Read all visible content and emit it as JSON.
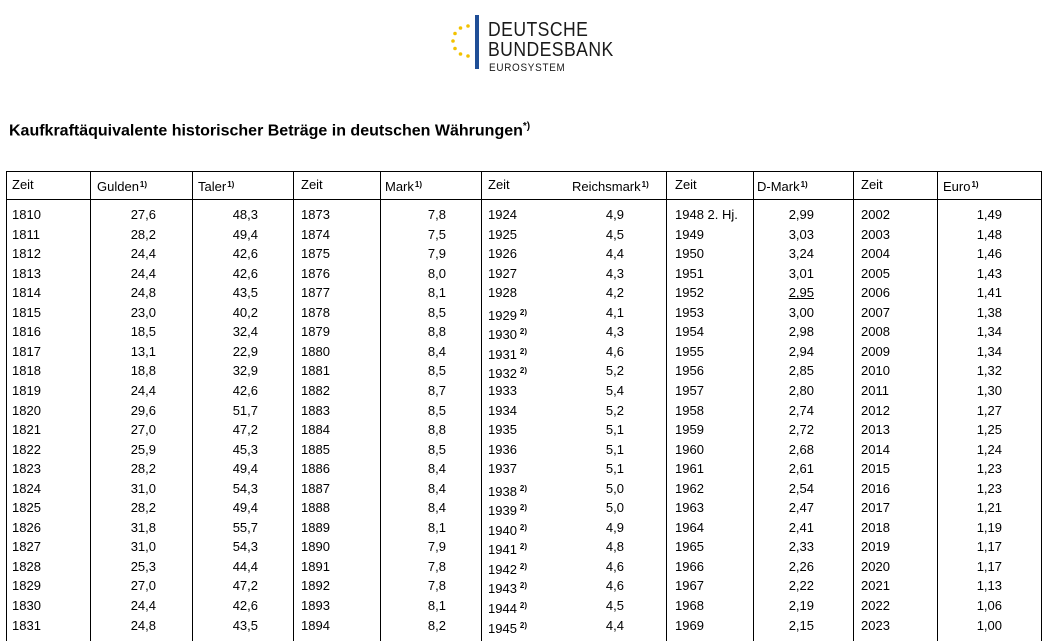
{
  "logo": {
    "line1": "DEUTSCHE",
    "line2": "BUNDESBANK",
    "line3": "EUROSYSTEM",
    "colors": {
      "bar": "#1f4e96",
      "stars": "#f2c200"
    }
  },
  "title": {
    "text": "Kaufkraftäquivalente historischer Beträge in deutschen Währungen",
    "marker": "*)"
  },
  "headers": [
    {
      "label": "Zeit",
      "note": ""
    },
    {
      "label": "Gulden",
      "note": "1)"
    },
    {
      "label": "Taler",
      "note": "1)"
    },
    {
      "label": "Zeit",
      "note": ""
    },
    {
      "label": "Mark",
      "note": "1)"
    },
    {
      "label": "Zeit",
      "note": ""
    },
    {
      "label": "Reichsmark",
      "note": "1)"
    },
    {
      "label": "Zeit",
      "note": ""
    },
    {
      "label": "D-Mark",
      "note": "1)"
    },
    {
      "label": "Zeit",
      "note": ""
    },
    {
      "label": "Euro",
      "note": "1)"
    }
  ],
  "rows": [
    [
      "1810",
      "27,6",
      "48,3",
      "1873",
      "7,8",
      "1924",
      "",
      "4,9",
      "1948 2. Hj.",
      "2,99",
      "2002",
      "1,49"
    ],
    [
      "1811",
      "28,2",
      "49,4",
      "1874",
      "7,5",
      "1925",
      "",
      "4,5",
      "1949",
      "3,03",
      "2003",
      "1,48"
    ],
    [
      "1812",
      "24,4",
      "42,6",
      "1875",
      "7,9",
      "1926",
      "",
      "4,4",
      "1950",
      "3,24",
      "2004",
      "1,46"
    ],
    [
      "1813",
      "24,4",
      "42,6",
      "1876",
      "8,0",
      "1927",
      "",
      "4,3",
      "1951",
      "3,01",
      "2005",
      "1,43"
    ],
    [
      "1814",
      "24,8",
      "43,5",
      "1877",
      "8,1",
      "1928",
      "",
      "4,2",
      "1952",
      "2,95",
      "2006",
      "1,41"
    ],
    [
      "1815",
      "23,0",
      "40,2",
      "1878",
      "8,5",
      "1929",
      "2)",
      "4,1",
      "1953",
      "3,00",
      "2007",
      "1,38"
    ],
    [
      "1816",
      "18,5",
      "32,4",
      "1879",
      "8,8",
      "1930",
      "2)",
      "4,3",
      "1954",
      "2,98",
      "2008",
      "1,34"
    ],
    [
      "1817",
      "13,1",
      "22,9",
      "1880",
      "8,4",
      "1931",
      "2)",
      "4,6",
      "1955",
      "2,94",
      "2009",
      "1,34"
    ],
    [
      "1818",
      "18,8",
      "32,9",
      "1881",
      "8,5",
      "1932",
      "2)",
      "5,2",
      "1956",
      "2,85",
      "2010",
      "1,32"
    ],
    [
      "1819",
      "24,4",
      "42,6",
      "1882",
      "8,7",
      "1933",
      "",
      "5,4",
      "1957",
      "2,80",
      "2011",
      "1,30"
    ],
    [
      "1820",
      "29,6",
      "51,7",
      "1883",
      "8,5",
      "1934",
      "",
      "5,2",
      "1958",
      "2,74",
      "2012",
      "1,27"
    ],
    [
      "1821",
      "27,0",
      "47,2",
      "1884",
      "8,8",
      "1935",
      "",
      "5,1",
      "1959",
      "2,72",
      "2013",
      "1,25"
    ],
    [
      "1822",
      "25,9",
      "45,3",
      "1885",
      "8,5",
      "1936",
      "",
      "5,1",
      "1960",
      "2,68",
      "2014",
      "1,24"
    ],
    [
      "1823",
      "28,2",
      "49,4",
      "1886",
      "8,4",
      "1937",
      "",
      "5,1",
      "1961",
      "2,61",
      "2015",
      "1,23"
    ],
    [
      "1824",
      "31,0",
      "54,3",
      "1887",
      "8,4",
      "1938",
      "2)",
      "5,0",
      "1962",
      "2,54",
      "2016",
      "1,23"
    ],
    [
      "1825",
      "28,2",
      "49,4",
      "1888",
      "8,4",
      "1939",
      "2)",
      "5,0",
      "1963",
      "2,47",
      "2017",
      "1,21"
    ],
    [
      "1826",
      "31,8",
      "55,7",
      "1889",
      "8,1",
      "1940",
      "2)",
      "4,9",
      "1964",
      "2,41",
      "2018",
      "1,19"
    ],
    [
      "1827",
      "31,0",
      "54,3",
      "1890",
      "7,9",
      "1941",
      "2)",
      "4,8",
      "1965",
      "2,33",
      "2019",
      "1,17"
    ],
    [
      "1828",
      "25,3",
      "44,4",
      "1891",
      "7,8",
      "1942",
      "2)",
      "4,6",
      "1966",
      "2,26",
      "2020",
      "1,17"
    ],
    [
      "1829",
      "27,0",
      "47,2",
      "1892",
      "7,8",
      "1943",
      "2)",
      "4,6",
      "1967",
      "2,22",
      "2021",
      "1,13"
    ],
    [
      "1830",
      "24,4",
      "42,6",
      "1893",
      "8,1",
      "1944",
      "2)",
      "4,5",
      "1968",
      "2,19",
      "2022",
      "1,06"
    ],
    [
      "1831",
      "24,8",
      "43,5",
      "1894",
      "8,2",
      "1945",
      "2)",
      "4,4",
      "1969",
      "2,15",
      "2023",
      "1,00"
    ]
  ]
}
